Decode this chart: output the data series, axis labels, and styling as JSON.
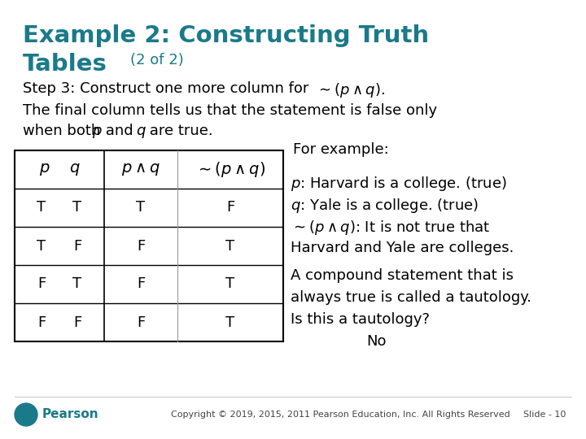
{
  "title_line1": "Example 2: Constructing Truth",
  "title_line2": "Tables",
  "title_sub": "(2 of 2)",
  "title_color": "#1a7a8a",
  "bg_color": "#ffffff",
  "col_headers_math": [
    "$p$   $q$",
    "$p \\wedge q$",
    "$\\sim(p \\wedge q)$"
  ],
  "rows": [
    [
      "T   T",
      "T",
      "F"
    ],
    [
      "T   F",
      "F",
      "T"
    ],
    [
      "F   T",
      "F",
      "T"
    ],
    [
      "F   F",
      "F",
      "T"
    ]
  ],
  "copyright_text": "Copyright © 2019, 2015, 2011 Pearson Education, Inc. All Rights Reserved",
  "slide_text": "Slide - 10",
  "footer_color": "#444444",
  "teal_color": "#1a7a8a"
}
